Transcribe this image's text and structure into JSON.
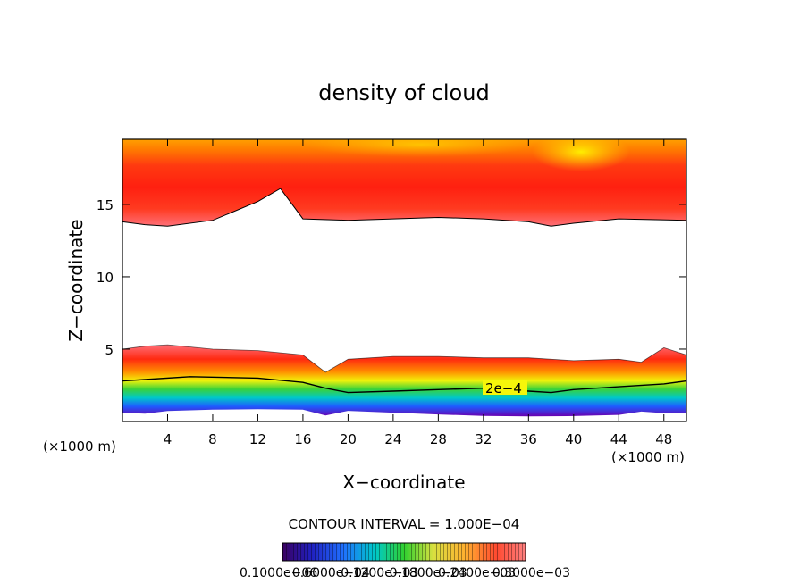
{
  "chart_data": {
    "type": "heatmap",
    "title": "density of cloud",
    "xlabel": "X−coordinate",
    "ylabel": "Z−coordinate",
    "x_unit_left": "(×1000 m)",
    "x_unit_right": "(×1000 m)",
    "xlim": [
      0,
      50
    ],
    "ylim": [
      0,
      19.5
    ],
    "x_ticks": [
      "4",
      "8",
      "12",
      "16",
      "20",
      "24",
      "28",
      "32",
      "36",
      "40",
      "44",
      "48"
    ],
    "x_tick_values": [
      4,
      8,
      12,
      16,
      20,
      24,
      28,
      32,
      36,
      40,
      44,
      48
    ],
    "y_ticks": [
      "5",
      "10",
      "15"
    ],
    "y_tick_values": [
      5,
      10,
      15
    ],
    "contour_label": "2e−4",
    "contour_label_value": 0.0002,
    "contour_interval_text": "CONTOUR INTERVAL = 1.000E−04",
    "colorbar_labels": "0.10000.6000e−04",
    "colorbar_labels_overlap": [
      "0.1000e−06",
      "0.6000e−04",
      "0.1200e−03",
      "0.1800e−03",
      "0.2400e−03",
      "0.3000e−03"
    ],
    "upper_cloud": {
      "base_z": [
        13.8,
        13.6,
        13.5,
        13.9,
        15.2,
        16.1,
        14.0,
        13.9,
        14.0,
        14.1,
        14.0,
        13.8,
        13.5,
        13.7,
        14.0,
        13.9
      ],
      "base_x": [
        0,
        2,
        4,
        8,
        12,
        14,
        16,
        20,
        24,
        28,
        32,
        36,
        38,
        40,
        44,
        50
      ],
      "top_z": 19.5,
      "peak_density": 0.0003
    },
    "lower_cloud": {
      "top_z": [
        5.0,
        5.2,
        5.3,
        5.0,
        4.9,
        4.6,
        3.4,
        4.3,
        4.5,
        4.5,
        4.4,
        4.4,
        4.2,
        4.3,
        4.1,
        5.1,
        4.6
      ],
      "top_x": [
        0,
        2,
        4,
        8,
        12,
        16,
        18,
        20,
        24,
        28,
        32,
        36,
        40,
        44,
        46,
        48,
        50
      ],
      "contour_2e4_z": [
        2.8,
        2.9,
        3.1,
        3.0,
        2.7,
        2.3,
        2.0,
        2.1,
        2.2,
        2.3,
        2.1,
        2.0,
        2.2,
        2.4,
        2.6,
        2.8
      ],
      "contour_2e4_x": [
        0,
        2,
        6,
        12,
        16,
        18,
        20,
        24,
        28,
        32,
        36,
        38,
        40,
        44,
        48,
        50
      ],
      "base_z": 0.6
    },
    "colors": {
      "violet": "#6a00b0",
      "blue": "#1e5cff",
      "cyan": "#00c8e6",
      "green": "#22d23a",
      "yellow": "#f2f20a",
      "orange": "#ff9a00",
      "red": "#ff2a10",
      "pink": "#ff6e78"
    }
  }
}
